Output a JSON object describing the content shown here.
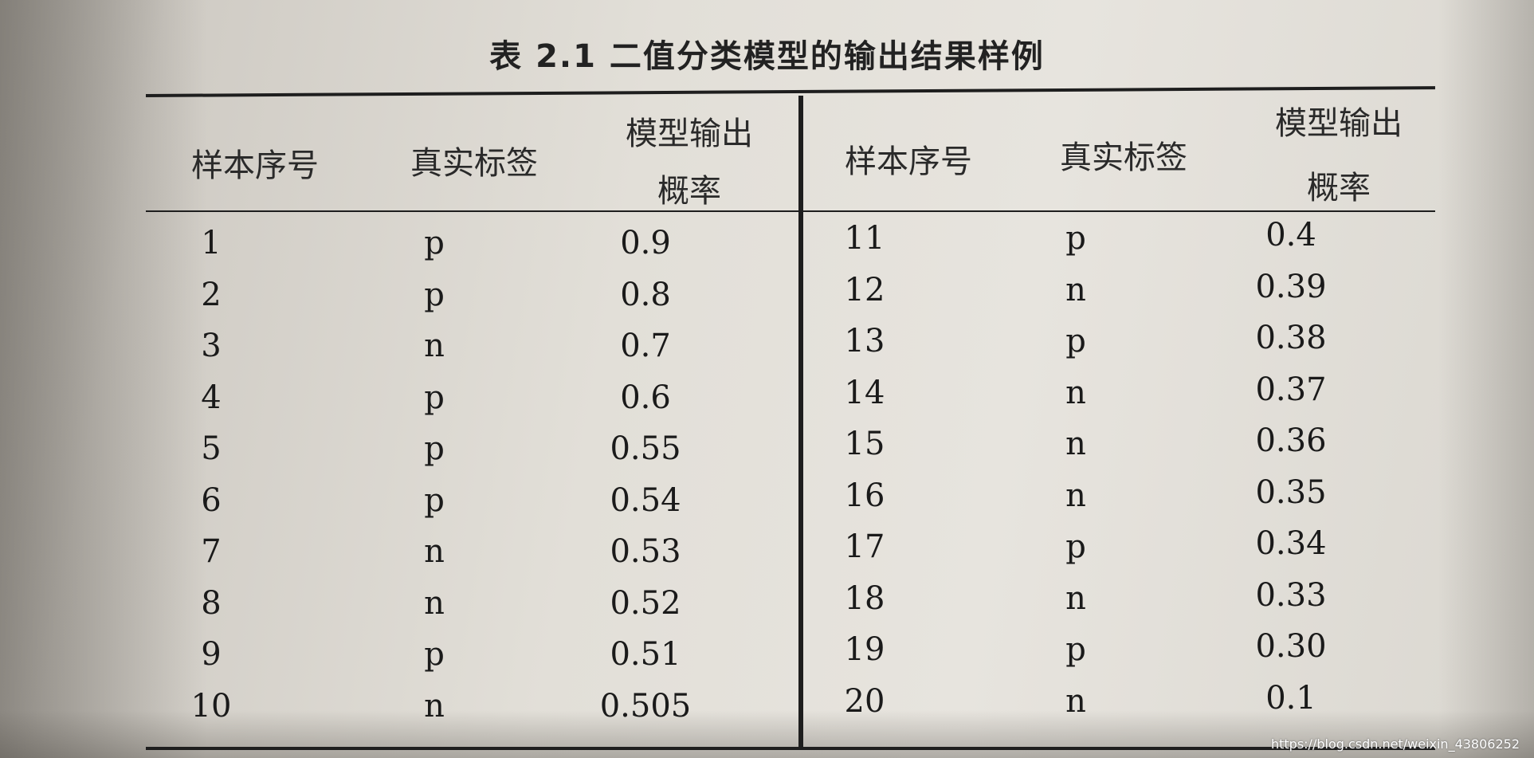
{
  "title": "表 2.1   二值分类模型的输出结果样例",
  "headers": {
    "sample_id": "样本序号",
    "true_label": "真实标签",
    "model_output_line1": "模型输出",
    "model_output_line2": "概率"
  },
  "rows_left": [
    {
      "id": "1",
      "label": "p",
      "prob": "0.9"
    },
    {
      "id": "2",
      "label": "p",
      "prob": "0.8"
    },
    {
      "id": "3",
      "label": "n",
      "prob": "0.7"
    },
    {
      "id": "4",
      "label": "p",
      "prob": "0.6"
    },
    {
      "id": "5",
      "label": "p",
      "prob": "0.55"
    },
    {
      "id": "6",
      "label": "p",
      "prob": "0.54"
    },
    {
      "id": "7",
      "label": "n",
      "prob": "0.53"
    },
    {
      "id": "8",
      "label": "n",
      "prob": "0.52"
    },
    {
      "id": "9",
      "label": "p",
      "prob": "0.51"
    },
    {
      "id": "10",
      "label": "n",
      "prob": "0.505"
    }
  ],
  "rows_right": [
    {
      "id": "11",
      "label": "p",
      "prob": "0.4"
    },
    {
      "id": "12",
      "label": "n",
      "prob": "0.39"
    },
    {
      "id": "13",
      "label": "p",
      "prob": "0.38"
    },
    {
      "id": "14",
      "label": "n",
      "prob": "0.37"
    },
    {
      "id": "15",
      "label": "n",
      "prob": "0.36"
    },
    {
      "id": "16",
      "label": "n",
      "prob": "0.35"
    },
    {
      "id": "17",
      "label": "p",
      "prob": "0.34"
    },
    {
      "id": "18",
      "label": "n",
      "prob": "0.33"
    },
    {
      "id": "19",
      "label": "p",
      "prob": "0.30"
    },
    {
      "id": "20",
      "label": "n",
      "prob": "0.1"
    }
  ],
  "watermark": "https://blog.csdn.net/weixin_43806252"
}
